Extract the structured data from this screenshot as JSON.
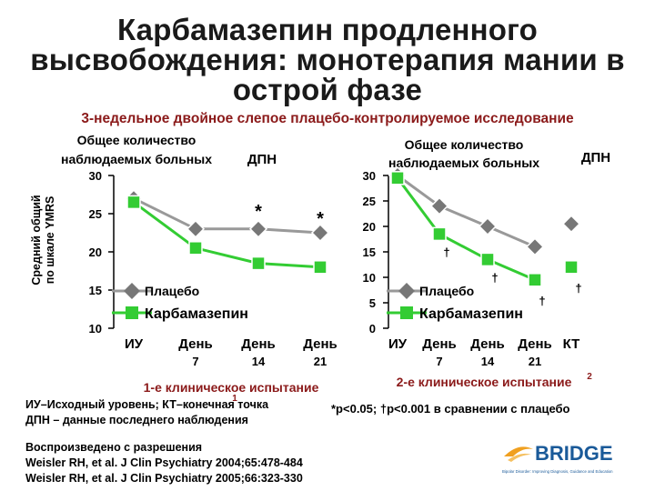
{
  "title_lines": [
    "Карбамазепин продленного",
    "высвобождения: монотерапия мании в",
    "острой фазе"
  ],
  "subtitle": "3-недельное двойное слепое плацебо-контролируемое исследование",
  "y_axis_label_lines": [
    "Средний общий",
    "по шкале YMRS"
  ],
  "colors": {
    "placebo": "#999999",
    "carbamazepine": "#33cc33",
    "axis": "#000000",
    "subtitle": "#8b1a1a",
    "logo_orange": "#f0a020",
    "logo_blue": "#1a5a99"
  },
  "chart_data": [
    {
      "type": "line",
      "panel_header_lines": [
        "Общее количество",
        "наблюдаемых больных"
      ],
      "lpo_label": "ДПН",
      "categories": [
        "ИУ",
        "День 7",
        "День 14",
        "День 21"
      ],
      "x_tick_lines": [
        [
          "ИУ"
        ],
        [
          "День",
          "7"
        ],
        [
          "День",
          "14"
        ],
        [
          "День",
          "21"
        ]
      ],
      "ylim": [
        10,
        30
      ],
      "yticks": [
        10,
        15,
        20,
        25,
        30
      ],
      "series": [
        {
          "name": "Плацебо",
          "marker": "diamond",
          "values": [
            27,
            23,
            23,
            22.5
          ]
        },
        {
          "name": "Карбамазепин",
          "marker": "square",
          "values": [
            26.5,
            20.5,
            18.5,
            18
          ]
        }
      ],
      "annotations": [
        {
          "text": "*",
          "category": "День 14",
          "y": 25.5
        },
        {
          "text": "*",
          "category": "День 21",
          "y": 24.5
        }
      ],
      "legend": "bottom-left",
      "caption": "1-е клиническое испытание",
      "caption_superscript": "1"
    },
    {
      "type": "line",
      "panel_header_lines": [
        "Общее количество",
        "наблюдаемых больных"
      ],
      "lpo_label": "ДПН",
      "categories": [
        "ИУ",
        "День 7",
        "День 14",
        "День 21",
        "КТ"
      ],
      "x_tick_lines": [
        [
          "ИУ"
        ],
        [
          "День",
          "7"
        ],
        [
          "День",
          "14"
        ],
        [
          "День",
          "21"
        ],
        [
          "КТ"
        ]
      ],
      "ylim": [
        0,
        30
      ],
      "yticks": [
        0,
        5,
        10,
        15,
        20,
        25,
        30
      ],
      "series": [
        {
          "name": "Плацебо",
          "marker": "diamond",
          "values": [
            30,
            24,
            20,
            16,
            20.5
          ]
        },
        {
          "name": "Карбамазепин",
          "marker": "square",
          "values": [
            29.5,
            18.5,
            13.5,
            9.5,
            12
          ]
        }
      ],
      "annotations": [
        {
          "text": "†",
          "category": "День 7",
          "y": 15.5
        },
        {
          "text": "†",
          "category": "День 14",
          "y": 10.5
        },
        {
          "text": "†",
          "category": "День 21",
          "y": 6
        },
        {
          "text": "†",
          "category": "КТ",
          "y": 8.5
        }
      ],
      "legend": "bottom-left",
      "caption": "2-е клиническое испытание",
      "caption_superscript": "2"
    }
  ],
  "footnotes": {
    "abbr1": "ИУ–Исходный уровень; КТ–конечная точка",
    "abbr2": "ДПН – данные последнего наблюдения",
    "significance": "*р<0.05; †р<0.001 в сравнении с плацебо"
  },
  "reference": {
    "line1": "Воспроизведено с разрешения",
    "line2": "Weisler RH, et al. J Clin Psychiatry 2004;65:478-484",
    "line3": "Weisler RH, et al. J Clin Psychiatry 2005;66:323-330"
  },
  "logo": {
    "name": "BRIDGE",
    "tagline": "Bipolar Disorder: Improving Diagnosis, Guidance and Education"
  }
}
